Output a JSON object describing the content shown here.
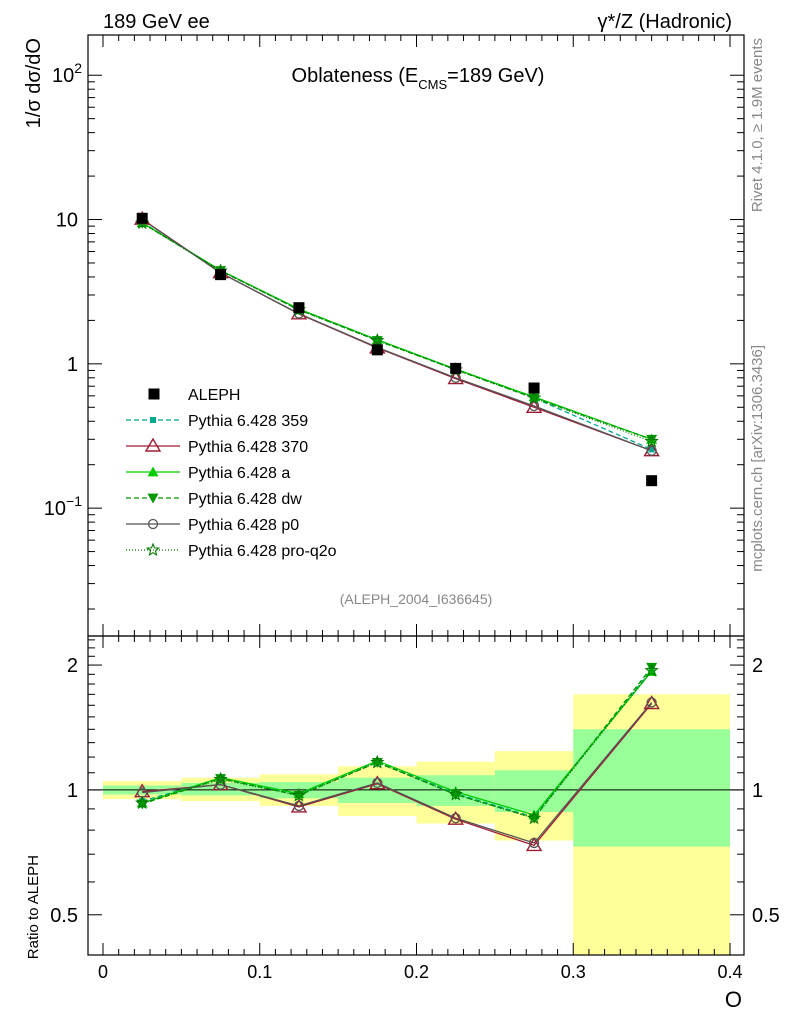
{
  "header": {
    "left": "189 GeV ee",
    "right": "γ*/Z (Hadronic)"
  },
  "side": {
    "rivet": "Rivet 4.1.0, ≥ 1.9M events",
    "mcplots": "mcplots.cern.ch [arXiv:1306.3436]"
  },
  "chart_data": {
    "type": "line",
    "title_main": "Oblateness (E",
    "title_sub": "CMS",
    "title_end": "=189 GeV)",
    "analysis_id": "(ALEPH_2004_I636645)",
    "xlabel": "O",
    "ylabel_top": "1/σ  dσ/dO",
    "ylabel_bottom": "Ratio to ALEPH",
    "xlim": [
      0,
      0.4
    ],
    "ylim_top": [
      0.013,
      190
    ],
    "ylim_bottom": [
      0.4,
      2.35
    ],
    "x_ticks": [
      {
        "value": 0,
        "label": "0"
      },
      {
        "value": 0.1,
        "label": "0.1"
      },
      {
        "value": 0.2,
        "label": "0.2"
      },
      {
        "value": 0.3,
        "label": "0.3"
      },
      {
        "value": 0.4,
        "label": "0.4"
      }
    ],
    "y_ticks_top": [
      {
        "value": 100,
        "base": "10",
        "exp": "2"
      },
      {
        "value": 10,
        "base": "10",
        "exp": ""
      },
      {
        "value": 1,
        "base": "1",
        "exp": ""
      },
      {
        "value": 0.1,
        "base": "10",
        "exp": "−1"
      }
    ],
    "y_ticks_bottom": [
      {
        "value": 2,
        "label": "2"
      },
      {
        "value": 1,
        "label": "1"
      },
      {
        "value": 0.5,
        "label": "0.5"
      }
    ],
    "bins": [
      {
        "lo": 0.0,
        "hi": 0.05,
        "green": [
          0.975,
          1.025
        ],
        "yellow": [
          0.95,
          1.05
        ]
      },
      {
        "lo": 0.05,
        "hi": 0.1,
        "green": [
          0.97,
          1.04
        ],
        "yellow": [
          0.94,
          1.07
        ]
      },
      {
        "lo": 0.1,
        "hi": 0.15,
        "green": [
          0.955,
          1.045
        ],
        "yellow": [
          0.915,
          1.09
        ]
      },
      {
        "lo": 0.15,
        "hi": 0.2,
        "green": [
          0.93,
          1.07
        ],
        "yellow": [
          0.865,
          1.14
        ]
      },
      {
        "lo": 0.2,
        "hi": 0.25,
        "green": [
          0.915,
          1.085
        ],
        "yellow": [
          0.83,
          1.17
        ]
      },
      {
        "lo": 0.25,
        "hi": 0.3,
        "green": [
          0.885,
          1.115
        ],
        "yellow": [
          0.755,
          1.24
        ]
      },
      {
        "lo": 0.3,
        "hi": 0.4,
        "green": [
          0.73,
          1.4
        ],
        "yellow": [
          0.4,
          1.7
        ]
      }
    ],
    "x": [
      0.025,
      0.075,
      0.125,
      0.175,
      0.225,
      0.275,
      0.35
    ],
    "data_series": {
      "name": "ALEPH",
      "values": [
        10.2,
        4.15,
        2.45,
        1.25,
        0.93,
        0.68,
        0.155
      ]
    },
    "series": [
      {
        "name": "Pythia 6.428 359",
        "color": "#00a88f",
        "dash": "5,3",
        "marker": "square_small",
        "values": [
          9.55,
          4.42,
          2.38,
          1.46,
          0.92,
          0.58,
          0.255
        ],
        "ratios": [
          0.94,
          1.065,
          0.975,
          1.17,
          0.98,
          0.86,
          1.95
        ]
      },
      {
        "name": "Pythia 6.428 370",
        "color": "#a01c33",
        "dash": "",
        "marker": "triangle_open",
        "values": [
          10.05,
          4.28,
          2.22,
          1.29,
          0.79,
          0.5,
          0.25
        ],
        "ratios": [
          0.99,
          1.03,
          0.91,
          1.035,
          0.85,
          0.735,
          1.615
        ]
      },
      {
        "name": "Pythia 6.428 a",
        "color": "#00cc00",
        "dash": "",
        "marker": "triangle_up",
        "values": [
          9.5,
          4.45,
          2.4,
          1.47,
          0.92,
          0.59,
          0.3
        ],
        "ratios": [
          0.93,
          1.07,
          0.98,
          1.175,
          0.99,
          0.87,
          1.93
        ]
      },
      {
        "name": "Pythia 6.428 dw",
        "color": "#009900",
        "dash": "5,3",
        "marker": "triangle_down",
        "values": [
          9.45,
          4.43,
          2.37,
          1.45,
          0.91,
          0.58,
          0.3
        ],
        "ratios": [
          0.925,
          1.065,
          0.97,
          1.165,
          0.975,
          0.855,
          1.975
        ]
      },
      {
        "name": "Pythia 6.428 p0",
        "color": "#555555",
        "dash": "",
        "marker": "circle_open",
        "values": [
          10.0,
          4.27,
          2.23,
          1.3,
          0.8,
          0.51,
          0.25
        ],
        "ratios": [
          0.985,
          1.03,
          0.915,
          1.04,
          0.855,
          0.745,
          1.625
        ]
      },
      {
        "name": "Pythia 6.428 pro-q2o",
        "color": "#007700",
        "dash": "1,2",
        "marker": "star_open",
        "values": [
          9.45,
          4.4,
          2.37,
          1.45,
          0.91,
          0.58,
          0.29
        ],
        "ratios": [
          0.93,
          1.06,
          0.97,
          1.165,
          0.975,
          0.855,
          1.94
        ]
      }
    ]
  }
}
